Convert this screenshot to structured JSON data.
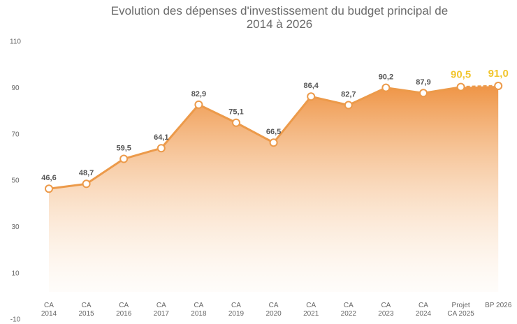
{
  "chart_data": {
    "type": "area",
    "title": "Evolution des dépenses d'investissement du budget principal de\n2014 à 2026",
    "categories": [
      "CA\n2014",
      "CA\n2015",
      "CA\n2016",
      "CA\n2017",
      "CA\n2018",
      "CA\n2019",
      "CA\n2020",
      "CA\n2021",
      "CA\n2022",
      "CA\n2023",
      "CA\n2024",
      "Projet\nCA 2025",
      "BP 2026"
    ],
    "values": [
      46.6,
      48.7,
      59.5,
      64.1,
      82.9,
      75.1,
      66.5,
      86.4,
      82.7,
      90.2,
      87.9,
      90.5,
      91.0
    ],
    "value_labels": [
      "46,6",
      "48,7",
      "59,5",
      "64,1",
      "82,9",
      "75,1",
      "66,5",
      "86,4",
      "82,7",
      "90,2",
      "87,9",
      "90,5",
      "91,0"
    ],
    "color": "#ec9a4a",
    "ylim": [
      -10,
      110
    ],
    "yticks": [
      -10,
      10,
      30,
      50,
      70,
      90,
      110
    ],
    "grid": false
  }
}
